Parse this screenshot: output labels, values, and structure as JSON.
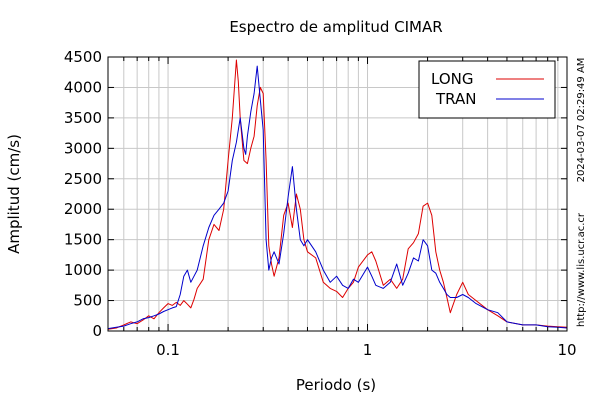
{
  "chart_data": {
    "type": "line",
    "title": "Espectro de amplitud CIMAR",
    "xlabel": "Periodo (s)",
    "ylabel": "Amplitud (cm/s)",
    "xscale": "log",
    "xlim": [
      0.05,
      10
    ],
    "ylim": [
      0,
      4500
    ],
    "xticks": [
      {
        "v": 0.1,
        "label": "0.1"
      },
      {
        "v": 1,
        "label": "1"
      },
      {
        "v": 10,
        "label": "10"
      }
    ],
    "yticks": [
      0,
      500,
      1000,
      1500,
      2000,
      2500,
      3000,
      3500,
      4000,
      4500
    ],
    "grid": true,
    "legend": "top-right",
    "series": [
      {
        "name": "LONG",
        "color": "#dd0000",
        "x": [
          0.05,
          0.055,
          0.06,
          0.065,
          0.07,
          0.075,
          0.08,
          0.085,
          0.09,
          0.095,
          0.1,
          0.105,
          0.11,
          0.115,
          0.12,
          0.125,
          0.13,
          0.135,
          0.14,
          0.15,
          0.16,
          0.17,
          0.18,
          0.19,
          0.2,
          0.21,
          0.22,
          0.225,
          0.23,
          0.24,
          0.25,
          0.26,
          0.27,
          0.28,
          0.29,
          0.3,
          0.31,
          0.32,
          0.33,
          0.34,
          0.36,
          0.38,
          0.4,
          0.42,
          0.44,
          0.46,
          0.48,
          0.5,
          0.55,
          0.6,
          0.65,
          0.7,
          0.75,
          0.8,
          0.85,
          0.9,
          1.0,
          1.05,
          1.1,
          1.2,
          1.3,
          1.4,
          1.5,
          1.6,
          1.7,
          1.8,
          1.9,
          2.0,
          2.1,
          2.2,
          2.3,
          2.4,
          2.5,
          2.6,
          2.8,
          3.0,
          3.2,
          3.5,
          4.0,
          4.5,
          5,
          6,
          7,
          8,
          9,
          10
        ],
        "y": [
          30,
          50,
          100,
          150,
          120,
          180,
          250,
          200,
          300,
          380,
          450,
          420,
          470,
          420,
          500,
          440,
          380,
          520,
          700,
          850,
          1500,
          1750,
          1650,
          2000,
          2800,
          3500,
          4450,
          4100,
          3500,
          2800,
          2750,
          3000,
          3200,
          3700,
          4000,
          3900,
          2800,
          1400,
          1100,
          900,
          1200,
          1900,
          2100,
          1700,
          2250,
          2000,
          1500,
          1300,
          1200,
          800,
          700,
          650,
          550,
          700,
          800,
          1050,
          1250,
          1300,
          1150,
          750,
          850,
          700,
          850,
          1350,
          1450,
          1600,
          2050,
          2100,
          1900,
          1300,
          1000,
          800,
          550,
          300,
          600,
          800,
          600,
          500,
          350,
          250,
          150,
          100,
          100,
          80,
          70,
          60
        ]
      },
      {
        "name": "TRAN",
        "color": "#0000cc",
        "x": [
          0.05,
          0.055,
          0.06,
          0.065,
          0.07,
          0.075,
          0.08,
          0.085,
          0.09,
          0.095,
          0.1,
          0.105,
          0.11,
          0.115,
          0.12,
          0.125,
          0.13,
          0.135,
          0.14,
          0.15,
          0.16,
          0.17,
          0.18,
          0.19,
          0.2,
          0.21,
          0.22,
          0.23,
          0.24,
          0.245,
          0.25,
          0.26,
          0.27,
          0.28,
          0.29,
          0.3,
          0.31,
          0.32,
          0.33,
          0.34,
          0.36,
          0.38,
          0.4,
          0.42,
          0.44,
          0.46,
          0.48,
          0.5,
          0.55,
          0.6,
          0.65,
          0.7,
          0.75,
          0.8,
          0.85,
          0.9,
          1.0,
          1.05,
          1.1,
          1.2,
          1.3,
          1.4,
          1.5,
          1.6,
          1.7,
          1.8,
          1.9,
          2.0,
          2.1,
          2.2,
          2.3,
          2.4,
          2.5,
          2.6,
          2.8,
          3.0,
          3.2,
          3.5,
          4.0,
          4.5,
          5,
          6,
          7,
          8,
          9,
          10
        ],
        "y": [
          40,
          60,
          80,
          120,
          150,
          200,
          220,
          250,
          280,
          320,
          350,
          380,
          400,
          600,
          900,
          1000,
          800,
          900,
          1000,
          1400,
          1700,
          1900,
          2000,
          2100,
          2300,
          2800,
          3100,
          3500,
          3000,
          2900,
          3200,
          3600,
          3900,
          4350,
          3800,
          3300,
          1500,
          1000,
          1200,
          1300,
          1100,
          1600,
          2200,
          2700,
          2000,
          1500,
          1400,
          1500,
          1300,
          1000,
          800,
          900,
          750,
          700,
          850,
          800,
          1050,
          900,
          750,
          700,
          800,
          1100,
          750,
          950,
          1200,
          1150,
          1500,
          1400,
          1000,
          950,
          800,
          700,
          600,
          550,
          550,
          600,
          550,
          450,
          350,
          300,
          150,
          100,
          100,
          70,
          60,
          50
        ]
      }
    ],
    "side_labels": [
      "2024-03-07 02:29:49 AM",
      "http://www.lis.ucr.ac.cr"
    ]
  }
}
